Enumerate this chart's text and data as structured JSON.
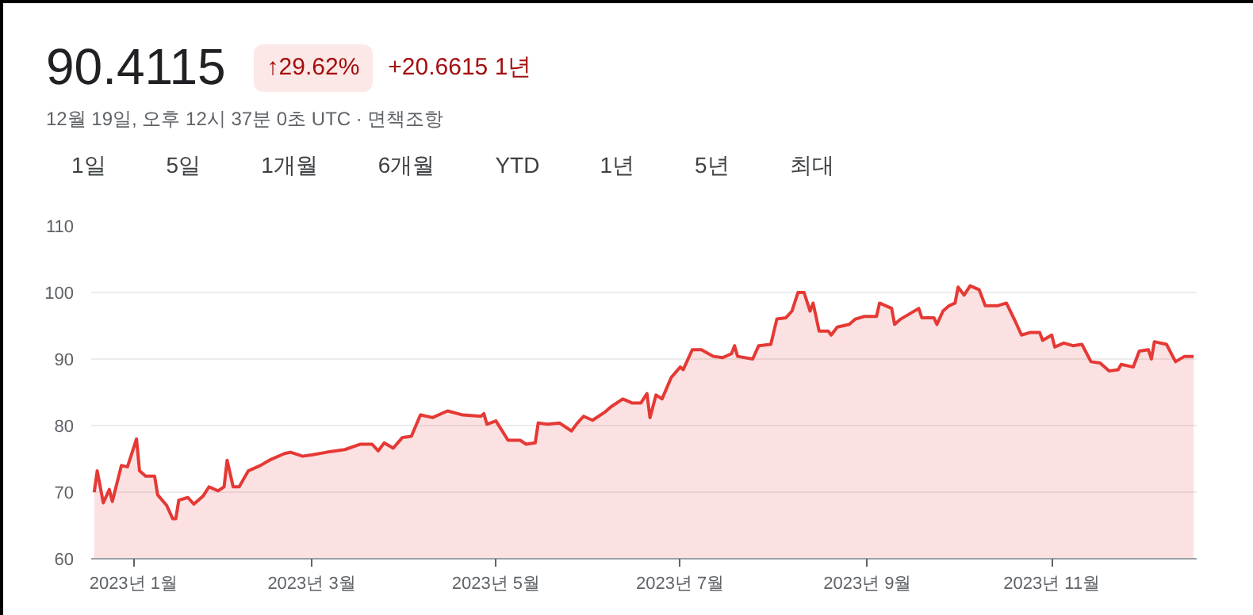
{
  "chart_data": {
    "type": "area",
    "title": "90.4115",
    "subtitle": "12월 19일, 오후 12시 37분 0초 UTC · 면책조항",
    "annotations": [
      "↑29.62%",
      "+20.6615 1년",
      "1일",
      "5일",
      "1개월",
      "6개월",
      "YTD",
      "1년",
      "5년",
      "최대"
    ],
    "x": [
      "2022-12-19",
      "2022-12-20",
      "2022-12-22",
      "2022-12-24",
      "2022-12-25",
      "2022-12-28",
      "2022-12-30",
      "2023-01-02",
      "2023-01-03",
      "2023-01-05",
      "2023-01-08",
      "2023-01-09",
      "2023-01-12",
      "2023-01-14",
      "2023-01-15",
      "2023-01-16",
      "2023-01-19",
      "2023-01-21",
      "2023-01-24",
      "2023-01-26",
      "2023-01-29",
      "2023-01-31",
      "2023-02-01",
      "2023-02-03",
      "2023-02-05",
      "2023-02-08",
      "2023-02-12",
      "2023-02-15",
      "2023-02-20",
      "2023-02-22",
      "2023-02-26",
      "2023-03-01",
      "2023-03-06",
      "2023-03-12",
      "2023-03-17",
      "2023-03-21",
      "2023-03-23",
      "2023-03-25",
      "2023-03-28",
      "2023-03-31",
      "2023-04-03",
      "2023-04-06",
      "2023-04-10",
      "2023-04-15",
      "2023-04-20",
      "2023-04-26",
      "2023-04-27",
      "2023-04-28",
      "2023-05-01",
      "2023-05-05",
      "2023-05-09",
      "2023-05-11",
      "2023-05-14",
      "2023-05-15",
      "2023-05-18",
      "2023-05-22",
      "2023-05-26",
      "2023-05-28",
      "2023-05-30",
      "2023-06-02",
      "2023-06-06",
      "2023-06-08",
      "2023-06-12",
      "2023-06-15",
      "2023-06-18",
      "2023-06-20",
      "2023-06-21",
      "2023-06-23",
      "2023-06-25",
      "2023-06-28",
      "2023-07-01",
      "2023-07-02",
      "2023-07-05",
      "2023-07-08",
      "2023-07-12",
      "2023-07-15",
      "2023-07-18",
      "2023-07-19",
      "2023-07-20",
      "2023-07-25",
      "2023-07-27",
      "2023-07-31",
      "2023-08-02",
      "2023-08-05",
      "2023-08-07",
      "2023-08-09",
      "2023-08-11",
      "2023-08-13",
      "2023-08-14",
      "2023-08-16",
      "2023-08-19",
      "2023-08-20",
      "2023-08-22",
      "2023-08-26",
      "2023-08-28",
      "2023-08-31",
      "2023-09-04",
      "2023-09-05",
      "2023-09-09",
      "2023-09-10",
      "2023-09-12",
      "2023-09-15",
      "2023-09-18",
      "2023-09-19",
      "2023-09-23",
      "2023-09-24",
      "2023-09-26",
      "2023-09-28",
      "2023-09-30",
      "2023-10-01",
      "2023-10-03",
      "2023-10-05",
      "2023-10-08",
      "2023-10-10",
      "2023-10-14",
      "2023-10-17",
      "2023-10-20",
      "2023-10-22",
      "2023-10-25",
      "2023-10-28",
      "2023-10-29",
      "2023-11-01",
      "2023-11-02",
      "2023-11-05",
      "2023-11-08",
      "2023-11-11",
      "2023-11-14",
      "2023-11-17",
      "2023-11-20",
      "2023-11-23",
      "2023-11-24",
      "2023-11-28",
      "2023-11-30",
      "2023-12-03",
      "2023-12-04",
      "2023-12-05",
      "2023-12-09",
      "2023-12-12",
      "2023-12-15",
      "2023-12-18"
    ],
    "series": [
      {
        "color": "#e53935",
        "values": [
          70,
          73.2,
          68.4,
          70.4,
          68.6,
          74,
          73.8,
          78,
          73.2,
          72.4,
          72.4,
          69.6,
          68,
          66,
          66,
          68.8,
          69.2,
          68.2,
          69.4,
          70.8,
          70.2,
          70.8,
          74.8,
          70.8,
          70.8,
          73.2,
          74,
          74.8,
          75.8,
          76,
          75.4,
          75.6,
          76,
          76.4,
          77.2,
          77.2,
          76.2,
          77.4,
          76.6,
          78.2,
          78.4,
          81.6,
          81.2,
          82.2,
          81.6,
          81.4,
          81.8,
          80.2,
          80.7,
          77.8,
          77.8,
          77.2,
          77.4,
          80.4,
          80.2,
          80.4,
          79.2,
          80.4,
          81.4,
          80.8,
          82,
          82.8,
          84,
          83.4,
          83.4,
          84.8,
          81.2,
          84.6,
          84,
          87.2,
          88.8,
          88.4,
          91.4,
          91.4,
          90.4,
          90.2,
          90.8,
          92,
          90.4,
          90,
          92,
          92.2,
          96,
          96.2,
          97.2,
          100,
          100,
          97.2,
          98.4,
          94.2,
          94.2,
          93.6,
          94.8,
          95.2,
          96,
          96.4,
          96.4,
          98.4,
          97.6,
          95.2,
          96,
          96.8,
          97.6,
          96.2,
          96.2,
          95.2,
          97.2,
          98,
          98.4,
          100.8,
          99.6,
          101,
          100.4,
          98,
          98,
          98.4,
          95.6,
          93.6,
          94,
          94,
          92.8,
          93.6,
          91.8,
          92.4,
          92,
          92.2,
          89.6,
          89.4,
          88.2,
          88.4,
          89.2,
          88.8,
          91.2,
          91.4,
          90,
          92.6,
          92.2,
          89.6,
          90.4,
          90.4
        ]
      }
    ],
    "xlim": [
      "2022-12-18",
      "2023-12-19"
    ],
    "xticks": [
      {
        "value": "2023-01-01",
        "label": "2023년 1월"
      },
      {
        "value": "2023-03-01",
        "label": "2023년 3월"
      },
      {
        "value": "2023-05-01",
        "label": "2023년 5월"
      },
      {
        "value": "2023-07-01",
        "label": "2023년 7월"
      },
      {
        "value": "2023-09-01",
        "label": "2023년 9월"
      },
      {
        "value": "2023-11-01",
        "label": "2023년 11월"
      }
    ],
    "ylim": [
      60,
      110
    ],
    "yticks": [
      60,
      70,
      80,
      90,
      100,
      110
    ],
    "grid": "y"
  }
}
